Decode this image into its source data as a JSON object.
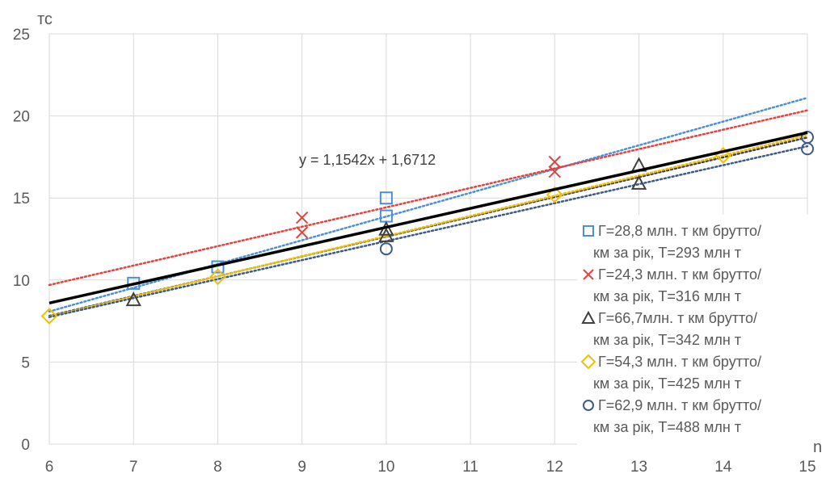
{
  "chart_data": {
    "type": "scatter",
    "xlabel": "n",
    "ylabel": "тс",
    "xlim": [
      6,
      15
    ],
    "ylim": [
      0,
      25
    ],
    "x_ticks": [
      "6",
      "7",
      "8",
      "9",
      "10",
      "11",
      "12",
      "13",
      "14",
      "15"
    ],
    "y_ticks": [
      "0",
      "5",
      "10",
      "15",
      "20",
      "25"
    ],
    "grid": true,
    "legend_position": "right",
    "series": [
      {
        "name_lines": [
          "Г=28,8 млн. т км брутто/",
          "км за рік, Т=293 млн т"
        ],
        "marker": "square",
        "color": "#4a90d9",
        "points": [
          [
            7,
            9.8
          ],
          [
            8,
            10.8
          ],
          [
            10,
            13.9
          ],
          [
            10,
            15.0
          ]
        ],
        "trendline": {
          "slope": 1.447,
          "intercept": -0.6
        }
      },
      {
        "name_lines": [
          "Г=24,3 млн. т км брутто/",
          "км за рік, Т=316 млн т"
        ],
        "marker": "cross",
        "color": "#e8413c",
        "points": [
          [
            9,
            12.9
          ],
          [
            9,
            13.8
          ],
          [
            12,
            16.6
          ],
          [
            12,
            17.2
          ]
        ],
        "trendline": {
          "slope": 1.183,
          "intercept": 2.6
        }
      },
      {
        "name_lines": [
          "Г=66,7млн. т км брутто/",
          "км за рік, Т=342 млн т"
        ],
        "marker": "triangle",
        "color": "#404040",
        "points": [
          [
            7,
            8.8
          ],
          [
            10,
            12.7
          ],
          [
            10,
            13.1
          ],
          [
            13,
            15.9
          ],
          [
            13,
            17.0
          ]
        ],
        "trendline": {
          "slope": 1.208,
          "intercept": 0.567
        }
      },
      {
        "name_lines": [
          "Г=54,3 млн. т км брутто/",
          "км за рік, Т=425 млн т"
        ],
        "marker": "diamond",
        "color": "#f0c000",
        "points": [
          [
            6,
            7.8
          ],
          [
            8,
            10.2
          ],
          [
            12,
            15.2
          ],
          [
            14,
            17.6
          ]
        ],
        "trendline": {
          "slope": 1.228,
          "intercept": 0.4
        }
      },
      {
        "name_lines": [
          "Г=62,9 млн. т км брутто/",
          "км за рік, Т=488 млн т"
        ],
        "marker": "circle",
        "color": "#3b5a8a",
        "points": [
          [
            10,
            11.9
          ],
          [
            15,
            18.0
          ],
          [
            15,
            18.7
          ]
        ],
        "trendline": {
          "slope": 1.157,
          "intercept": 0.8
        }
      }
    ],
    "overall_trend": {
      "equation": "y = 1,1542x + 1,6712",
      "slope": 1.1542,
      "intercept": 1.6712,
      "color": "#000000"
    }
  }
}
